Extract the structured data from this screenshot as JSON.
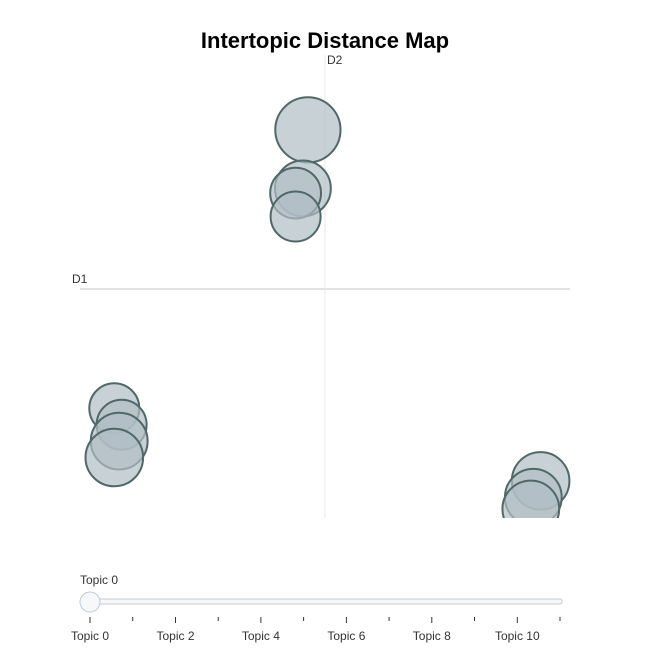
{
  "chart_data": {
    "type": "scatter",
    "title": "Intertopic Distance Map",
    "xlabel": "D1",
    "ylabel": "D2",
    "xlim": [
      -10,
      10
    ],
    "ylim": [
      -10,
      10
    ],
    "grid": false,
    "series": [
      {
        "values": [
          {
            "x": -8.6,
            "y": -5.1,
            "size": 0.5
          },
          {
            "x": -8.3,
            "y": -5.8,
            "size": 0.5
          },
          {
            "x": -8.4,
            "y": -6.5,
            "size": 0.58
          },
          {
            "x": -8.6,
            "y": -7.2,
            "size": 0.59
          },
          {
            "x": 8.8,
            "y": -8.2,
            "size": 0.59
          },
          {
            "x": 8.5,
            "y": -8.9,
            "size": 0.58
          },
          {
            "x": 8.4,
            "y": -9.4,
            "size": 0.58
          },
          {
            "x": -0.7,
            "y": 6.8,
            "size": 0.68
          },
          {
            "x": -0.9,
            "y": 4.3,
            "size": 0.57
          },
          {
            "x": -1.2,
            "y": 4.1,
            "size": 0.51
          },
          {
            "x": -1.2,
            "y": 3.1,
            "size": 0.5
          }
        ]
      }
    ]
  },
  "slider": {
    "current_label": "Topic 0",
    "value": 0,
    "min": 0,
    "max": 11,
    "tick_labels": [
      "Topic 0",
      "Topic 2",
      "Topic 4",
      "Topic 6",
      "Topic 8",
      "Topic 10"
    ],
    "tick_values": [
      0,
      2,
      4,
      6,
      8,
      10
    ]
  },
  "colors": {
    "bubble_fill": "#b0bec5",
    "bubble_stroke": "#506868",
    "axis_line": "#d9d9d9"
  }
}
